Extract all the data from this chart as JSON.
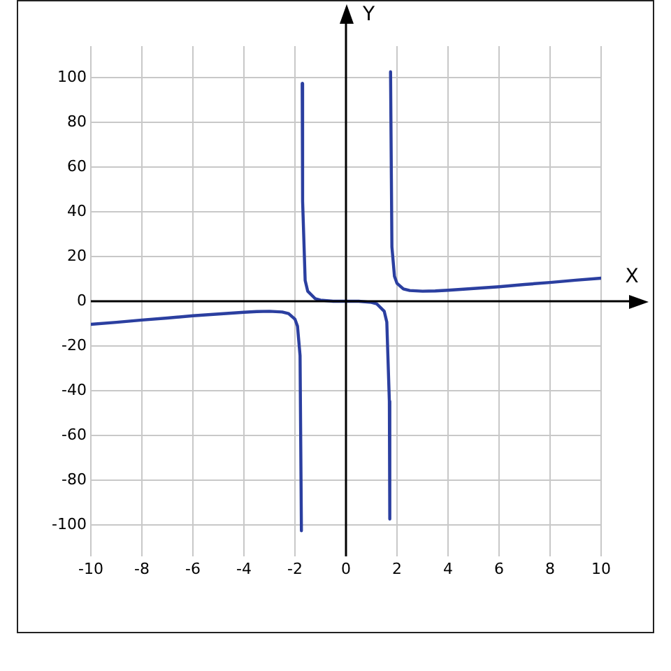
{
  "chart_data": {
    "type": "line",
    "xlabel": "X",
    "ylabel": "Y",
    "xlim": [
      -10,
      10
    ],
    "ylim": [
      -114,
      114
    ],
    "xticks": [
      -10,
      -8,
      -6,
      -4,
      -2,
      0,
      2,
      4,
      6,
      8,
      10
    ],
    "yticks": [
      -100,
      -80,
      -60,
      -40,
      -20,
      0,
      20,
      40,
      60,
      80,
      100
    ],
    "grid": true,
    "legend": false,
    "marker": "none",
    "line_style": "solid",
    "series": [
      {
        "color": "#2b3fa0",
        "x": [
          -10,
          -9,
          -8,
          -7,
          -6,
          -5,
          -4,
          -3.5,
          -3,
          -2.5,
          -2.25,
          -2,
          -1.9,
          -1.8,
          -1.747,
          -1.732,
          -1.717,
          -1.7,
          -1.6,
          -1.5,
          -1.2,
          -1,
          -0.5,
          0,
          0.5,
          1,
          1.2,
          1.5,
          1.6,
          1.7,
          1.717,
          1.732,
          1.747,
          1.8,
          1.9,
          2,
          2.25,
          2.5,
          3,
          3.5,
          4,
          5,
          6,
          7,
          8,
          9,
          10
        ],
        "values": [
          -10.3,
          -9.4,
          -8.4,
          -7.5,
          -6.5,
          -5.7,
          -4.9,
          -4.6,
          -4.5,
          -4.8,
          -5.5,
          -8,
          -11.2,
          -24.3,
          -102.5,
          null,
          97.3,
          44.7,
          9.3,
          4.5,
          1.1,
          0.5,
          0,
          0,
          0,
          -0.5,
          -1.1,
          -4.5,
          -9.3,
          -44.7,
          -97.3,
          null,
          102.5,
          24.3,
          11.2,
          8,
          5.5,
          4.8,
          4.5,
          4.6,
          4.9,
          5.7,
          6.5,
          7.5,
          8.4,
          9.4,
          10.3
        ]
      }
    ]
  }
}
